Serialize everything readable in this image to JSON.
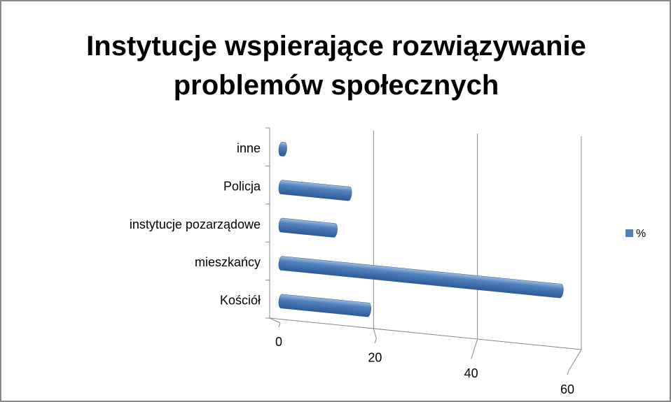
{
  "chart_data": {
    "type": "bar3d",
    "orientation": "horizontal",
    "title": "Instytucje wspierające rozwiązywanie problemów społecznych",
    "categories": [
      "Kościół",
      "mieszkańcy",
      "instytucje pozarządowe",
      "Policja",
      "inne"
    ],
    "series": [
      {
        "name": "%",
        "color": "#4f81bd",
        "values": [
          18,
          58,
          11,
          14,
          0.5
        ]
      }
    ],
    "xlim": [
      0,
      60
    ],
    "xticks": [
      0,
      20,
      40,
      60
    ],
    "grid": true,
    "legend": "right"
  }
}
